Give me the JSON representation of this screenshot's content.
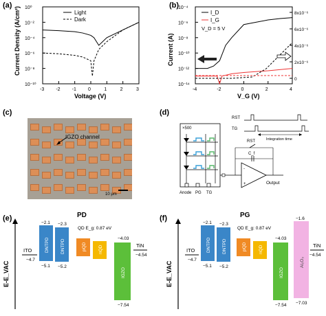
{
  "panels": {
    "a": {
      "letter": "(a)",
      "ylabel": "Current Density (A/cm²)",
      "xlabel": "Voltage (V)",
      "legend": [
        "Light",
        "Dark"
      ],
      "yticks": [
        "10⁰",
        "10⁻²",
        "10⁻⁴",
        "10⁻⁶",
        "10⁻⁸",
        "10⁻¹⁰"
      ],
      "xticks": [
        "-3",
        "-2",
        "-1",
        "0",
        "1",
        "2",
        "3"
      ]
    },
    "b": {
      "letter": "(b)",
      "ylabel": "Current (A)",
      "ylabel_right": "Current (A)",
      "xlabel": "V_G (V)",
      "legend": [
        "I_D",
        "I_G",
        "V_D = 5 V"
      ],
      "yticks_left": [
        "10⁻⁴",
        "10⁻⁶",
        "10⁻⁸",
        "10⁻¹⁰",
        "10⁻¹²",
        "10⁻¹⁴"
      ],
      "yticks_right": [
        "8x10⁻⁶",
        "6x10⁻⁶",
        "4x10⁻⁶",
        "2x10⁻⁶",
        "0"
      ],
      "xticks": [
        "-4",
        "-2",
        "0",
        "2",
        "4"
      ]
    },
    "c": {
      "letter": "(c)",
      "channel_label": "IGZO channel",
      "scale_label": "10 μm"
    },
    "d": {
      "letter": "(d)",
      "array_label": "×500",
      "rst": "RST",
      "tg": "TG",
      "integration": "Integration time",
      "rst2": "RST",
      "cf": "C_f",
      "output": "Output",
      "bottom_labels": [
        "Anode",
        "PG",
        "TG"
      ]
    },
    "e": {
      "letter": "(e)",
      "title": "PD",
      "yaxis": "E-E_VAC",
      "ito": "ITO",
      "ito_val": "−4.7",
      "tin": "TiN",
      "tin_val": "−4.54",
      "qd_gap": "QD E_g: 0.87 eV",
      "layers": [
        {
          "name": "DNTPD",
          "top": "−2.1",
          "bottom": "−5.1",
          "color": "#3a86c8"
        },
        {
          "name": "DNTPD",
          "top": "−2.3",
          "bottom": "−5.2",
          "color": "#3a86c8"
        },
        {
          "name": "pQD",
          "color": "#f08a24"
        },
        {
          "name": "nQD",
          "color": "#f5b800"
        },
        {
          "name": "IGZO",
          "top": "−4.03",
          "bottom": "−7.54",
          "color": "#5cbf3a"
        }
      ]
    },
    "f": {
      "letter": "(f)",
      "title": "PG",
      "yaxis": "E-E_VAC",
      "ito": "ITO",
      "ito_val": "−4.7",
      "tin": "TiN",
      "tin_val": "−4.54",
      "qd_gap": "QD E_g: 0.87 eV",
      "layers": [
        {
          "name": "DNTPD",
          "top": "−2.1",
          "bottom": "−5.1",
          "color": "#3a86c8"
        },
        {
          "name": "DNTPD",
          "top": "−2.3",
          "bottom": "−5.2",
          "color": "#3a86c8"
        },
        {
          "name": "pQD",
          "color": "#f08a24"
        },
        {
          "name": "nQD",
          "color": "#f5b800"
        },
        {
          "name": "IGZO",
          "top": "−4.03",
          "bottom": "−7.54",
          "color": "#5cbf3a"
        },
        {
          "name": "Al₂O₃",
          "top": "−1.6",
          "bottom": "−7.03",
          "color": "#f2b3e3"
        }
      ]
    }
  },
  "chart_data": [
    {
      "type": "line",
      "panel": "a",
      "xlabel": "Voltage (V)",
      "ylabel": "Current Density (A/cm²)",
      "xlim": [
        -3,
        3
      ],
      "ylim_log10": [
        -10,
        0
      ],
      "yscale": "log",
      "series": [
        {
          "name": "Light",
          "x": [
            -3,
            -2,
            -1,
            -0.5,
            0,
            0.2,
            0.5,
            1,
            2,
            3
          ],
          "y": [
            0.001,
            0.0008,
            0.0006,
            0.0004,
            0.0002,
            0.0001,
            1e-05,
            0.0001,
            0.001,
            0.01
          ]
        },
        {
          "name": "Dark",
          "x": [
            -3,
            -2,
            -1,
            -0.5,
            0,
            0.1,
            0.2,
            0.5,
            1,
            2,
            3
          ],
          "y": [
            1e-06,
            8e-07,
            5e-07,
            3e-07,
            1e-07,
            1e-09,
            1e-07,
            3e-06,
            3e-05,
            0.001,
            0.01
          ]
        }
      ]
    },
    {
      "type": "line",
      "panel": "b",
      "xlabel": "V_G (V)",
      "ylabel": "Current (A)",
      "xlim": [
        -4,
        4
      ],
      "yscale": "log",
      "series": [
        {
          "name": "I_D",
          "x": [
            -4,
            -3,
            -2.5,
            -2,
            -1.5,
            -1,
            0,
            1,
            2,
            3,
            4
          ],
          "y": [
            1e-12,
            1e-12,
            2e-12,
            1e-11,
            1e-09,
            1e-08,
            5e-07,
            1e-06,
            2e-06,
            3e-06,
            4e-06
          ]
        },
        {
          "name": "I_G",
          "x": [
            -4,
            -3,
            -2.2,
            -2,
            -1.8,
            -1,
            0,
            2,
            4
          ],
          "y": [
            1e-13,
            1e-13,
            1e-13,
            1e-14,
            1e-13,
            2e-13,
            3e-13,
            5e-13,
            1e-12
          ]
        }
      ]
    }
  ]
}
